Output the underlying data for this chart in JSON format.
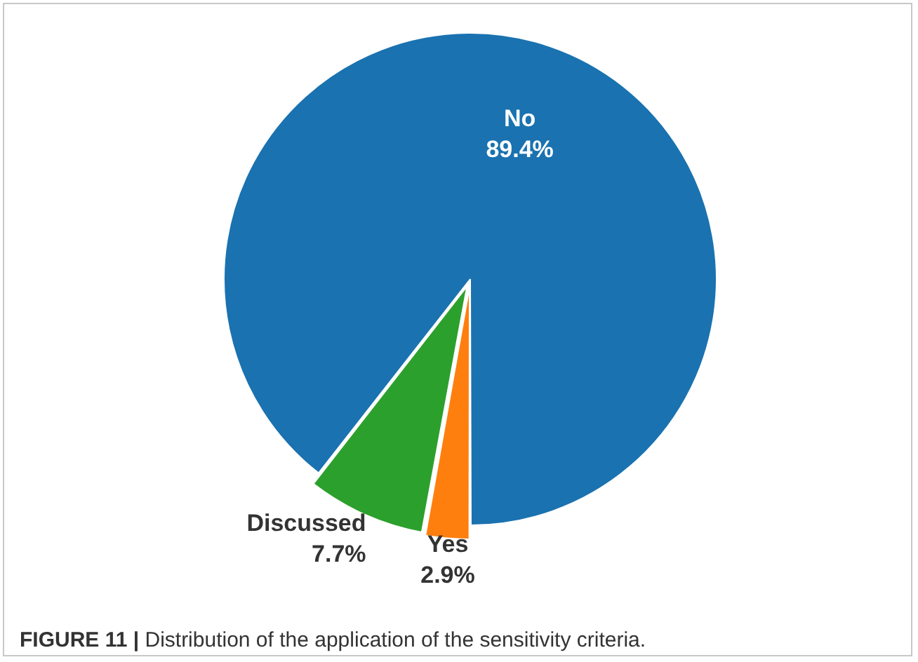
{
  "chart_data": {
    "type": "pie",
    "categories": [
      "No",
      "Yes",
      "Discussed"
    ],
    "values": [
      89.4,
      2.9,
      7.7
    ],
    "value_labels": [
      "89.4%",
      "2.9%",
      "7.7%"
    ],
    "colors": [
      "#1a72b0",
      "#ff7f0e",
      "#2ca02c"
    ],
    "legend": false,
    "annotations": [
      "FIGURE 11 | Distribution of the application of the sensitivity criteria."
    ]
  }
}
